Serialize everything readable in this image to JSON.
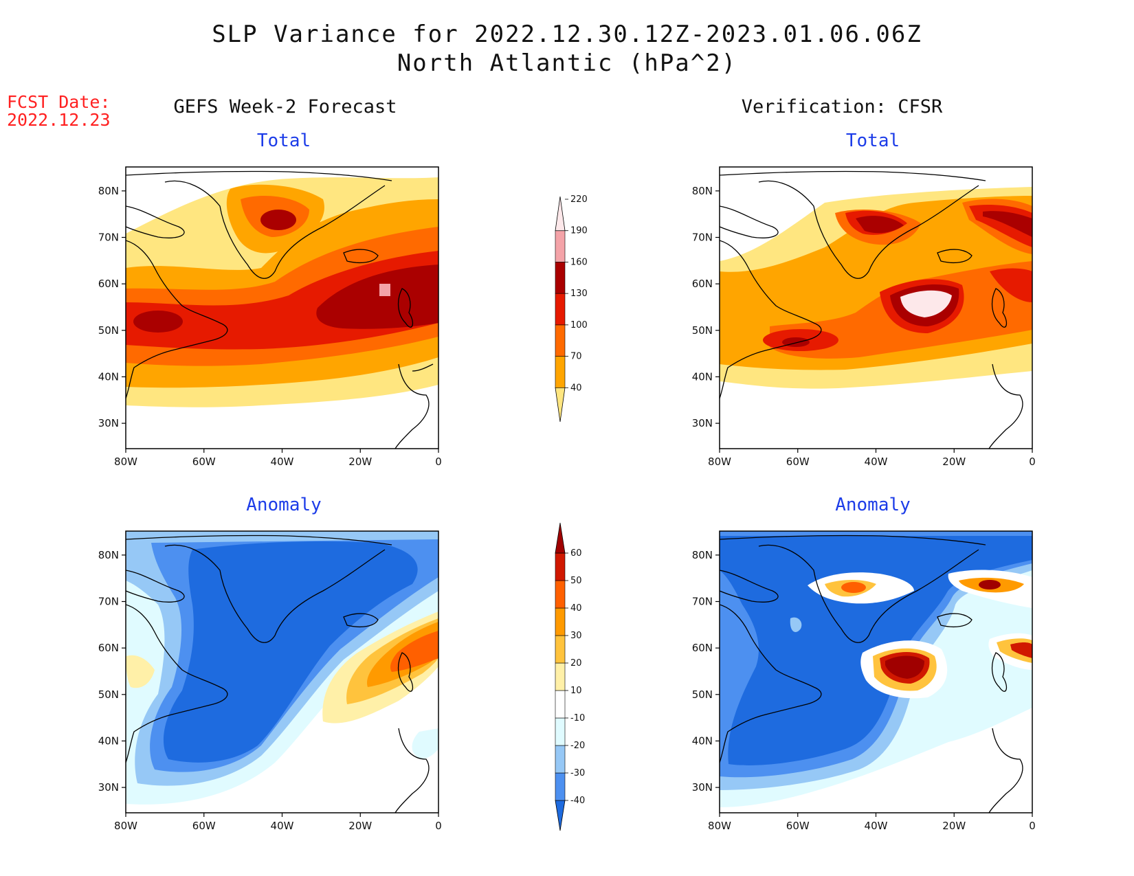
{
  "title": {
    "line1": "SLP Variance for 2022.12.30.12Z-2023.01.06.06Z",
    "line2": "North Atlantic (hPa^2)"
  },
  "fcst": {
    "label": "FCST Date:",
    "date": "2022.12.23"
  },
  "left_header": "GEFS Week-2 Forecast",
  "right_header": "Verification: CFSR",
  "panels": {
    "tl_sub": "Total",
    "tr_sub": "Total",
    "bl_sub": "Anomaly",
    "br_sub": "Anomaly"
  },
  "axes": {
    "lat_labels": [
      "80N",
      "70N",
      "60N",
      "50N",
      "40N",
      "30N"
    ],
    "lon_labels": [
      "80W",
      "60W",
      "40W",
      "20W",
      "0"
    ]
  },
  "colorbar_total": {
    "levels": [
      "40",
      "70",
      "100",
      "130",
      "160",
      "190",
      "220"
    ],
    "colors": [
      "#ffe680",
      "#ffa500",
      "#ff6a00",
      "#e61a00",
      "#aa0000",
      "#f4a3a8",
      "#fde8ea"
    ]
  },
  "colorbar_anomaly": {
    "levels": [
      "-40",
      "-30",
      "-20",
      "-10",
      "10",
      "20",
      "30",
      "40",
      "50",
      "60"
    ],
    "colors": [
      "#1e6bdf",
      "#4d90f0",
      "#96c8f6",
      "#e0fbff",
      "#ffffff",
      "#fff0a8",
      "#ffc33d",
      "#ff9a00",
      "#ff6000",
      "#d01800",
      "#a00000"
    ]
  }
}
